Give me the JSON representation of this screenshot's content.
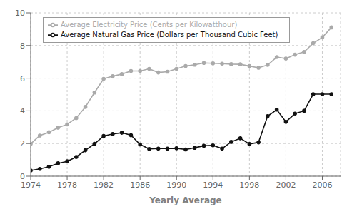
{
  "chart_data": {
    "type": "line",
    "xlabel": "Yearly Average",
    "x": [
      1974,
      1975,
      1976,
      1977,
      1978,
      1979,
      1980,
      1981,
      1982,
      1983,
      1984,
      1985,
      1986,
      1987,
      1988,
      1989,
      1990,
      1991,
      1992,
      1993,
      1994,
      1995,
      1996,
      1997,
      1998,
      1999,
      2000,
      2001,
      2002,
      2003,
      2004,
      2005,
      2006,
      2007
    ],
    "series": [
      {
        "name": "Average Natural Gas Price (Dollars per Thousand Cubic Feet)",
        "color": "#111111",
        "marker": "circle",
        "values": [
          0.35,
          0.45,
          0.58,
          0.79,
          0.91,
          1.18,
          1.59,
          1.98,
          2.46,
          2.59,
          2.66,
          2.51,
          1.94,
          1.67,
          1.69,
          1.69,
          1.71,
          1.64,
          1.74,
          1.86,
          1.89,
          1.69,
          2.1,
          2.32,
          1.97,
          2.07,
          3.68,
          4.07,
          3.33,
          3.83,
          4.0,
          5.02,
          5.02,
          5.02
        ]
      },
      {
        "name": "Average Electricity Price (Cents per Kilowatthour)",
        "color": "#aaaaaa",
        "marker": "circle",
        "values": [
          1.98,
          2.49,
          2.69,
          2.97,
          3.17,
          3.56,
          4.24,
          5.12,
          5.96,
          6.12,
          6.25,
          6.44,
          6.44,
          6.57,
          6.35,
          6.4,
          6.57,
          6.75,
          6.82,
          6.93,
          6.91,
          6.89,
          6.86,
          6.85,
          6.74,
          6.64,
          6.81,
          7.29,
          7.2,
          7.44,
          7.61,
          8.14,
          8.5,
          9.11
        ]
      }
    ],
    "xlim": [
      1974,
      2008
    ],
    "xticks": [
      1974,
      1978,
      1982,
      1986,
      1990,
      1994,
      1998,
      2002,
      2006
    ],
    "ylim": [
      0,
      10
    ],
    "yticks": [
      0,
      2,
      4,
      6,
      8,
      10
    ],
    "grid": true,
    "legend": "upper left"
  }
}
